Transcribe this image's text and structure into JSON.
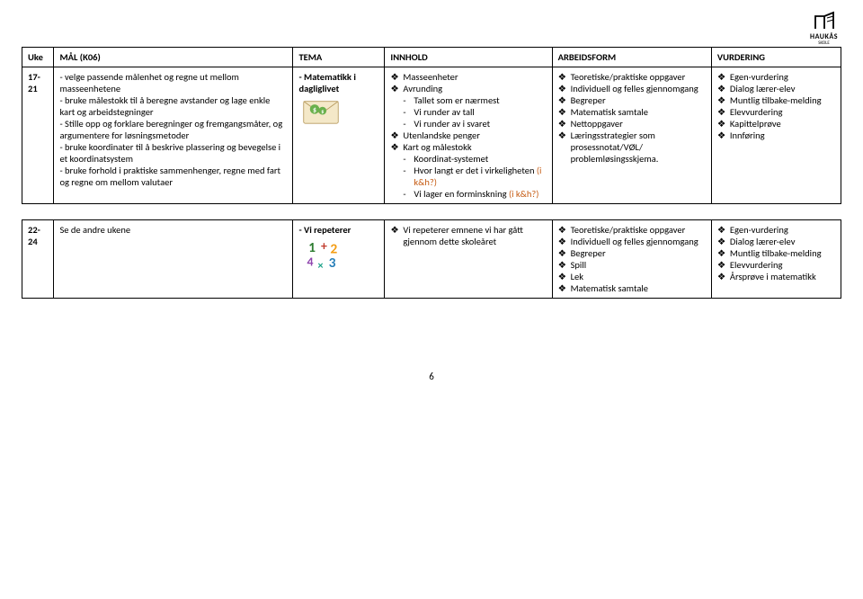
{
  "logo": {
    "name": "HAUKÅS",
    "sub": "SKOLE"
  },
  "headers": [
    "Uke",
    "MÅL (K06)",
    "TEMA",
    "INNHOLD",
    "ARBEIDSFORM",
    "VURDERING"
  ],
  "rows": [
    {
      "uke": "17-21",
      "maal": [
        "- velge passende målenhet og regne ut mellom masseenhetene",
        "- bruke målestokk til å beregne avstander og lage enkle kart og arbeidstegninger",
        "- Stille opp og forklare beregninger og fremgangsmåter, og argumentere for løsningsmetoder",
        "- bruke koordinater til å beskrive plassering og bevegelse i et koordinatsystem",
        "- bruke forhold i praktiske sammenhenger, regne med fart og regne om mellom valutaer"
      ],
      "tema": "- Matematikk i dagliglivet",
      "tema_icon": "envelope",
      "innhold": [
        {
          "t": "b",
          "text": "Masseenheter"
        },
        {
          "t": "b",
          "text": "Avrunding"
        },
        {
          "t": "s",
          "text": "Tallet som er nærmest"
        },
        {
          "t": "s",
          "text": "Vi runder av tall"
        },
        {
          "t": "s",
          "text": "Vi runder av i svaret"
        },
        {
          "t": "b",
          "text": "Utenlandske penger"
        },
        {
          "t": "b",
          "text": "Kart og målestokk"
        },
        {
          "t": "s",
          "text": "Koordinat-systemet"
        },
        {
          "t": "s",
          "text": "Hvor langt er det i virkeligheten ",
          "orange": "(i k&h?)"
        },
        {
          "t": "s",
          "text": "Vi lager en forminskning ",
          "orange": "(i k&h?)"
        }
      ],
      "arbeid": [
        "Teoretiske/praktiske oppgaver",
        "Individuell og felles gjennomgang",
        "Begreper",
        "Matematisk samtale",
        "Nettoppgaver",
        "Læringsstrategier som prosessnotat/VØL/ problemløsingsskjema."
      ],
      "vurdering": [
        "Egen-vurdering",
        "Dialog lærer-elev",
        "Muntlig tilbake-melding",
        "Elevvurdering",
        "Kapittelprøve",
        "Innføring"
      ]
    },
    {
      "uke": "22-24",
      "maal_plain": "Se de andre ukene",
      "tema": "- Vi repeterer",
      "tema_icon": "math",
      "innhold": [
        {
          "t": "b",
          "text": "Vi repeterer emnene vi har gått gjennom dette skoleåret"
        }
      ],
      "arbeid": [
        "Teoretiske/praktiske oppgaver",
        "Individuell og felles gjennomgang",
        "Begreper",
        "Spill",
        "Lek",
        "Matematisk samtale"
      ],
      "vurdering": [
        "Egen-vurdering",
        "Dialog lærer-elev",
        "Muntlig tilbake-melding",
        "Elevvurdering",
        "Årsprøve i matematikk"
      ]
    }
  ],
  "page_number": "6"
}
